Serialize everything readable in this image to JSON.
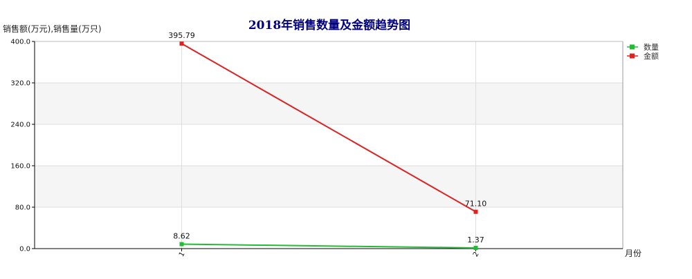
{
  "chart_data": {
    "type": "line",
    "title": "2018年销售数量及金额趋势图",
    "ylabel": "销售额(万元),销售量(万只)",
    "xlabel": "月份",
    "categories": [
      "1",
      "2"
    ],
    "ylim": [
      0,
      400
    ],
    "y_ticks": [
      "0.0",
      "80.0",
      "160.0",
      "240.0",
      "320.0",
      "400.0"
    ],
    "grid": true,
    "legend_position": "right",
    "series": [
      {
        "name": "数量",
        "color": "#22bb33",
        "values": [
          8.62,
          1.37
        ],
        "labels": [
          "8.62",
          "1.37"
        ]
      },
      {
        "name": "金额",
        "color": "#dd2222",
        "values": [
          395.79,
          71.1
        ],
        "labels": [
          "395.79",
          "71.10"
        ]
      }
    ],
    "colors": {
      "title": "#000080",
      "band": "#f5f5f5",
      "grid": "#dddddd",
      "axis": "#000000"
    }
  }
}
